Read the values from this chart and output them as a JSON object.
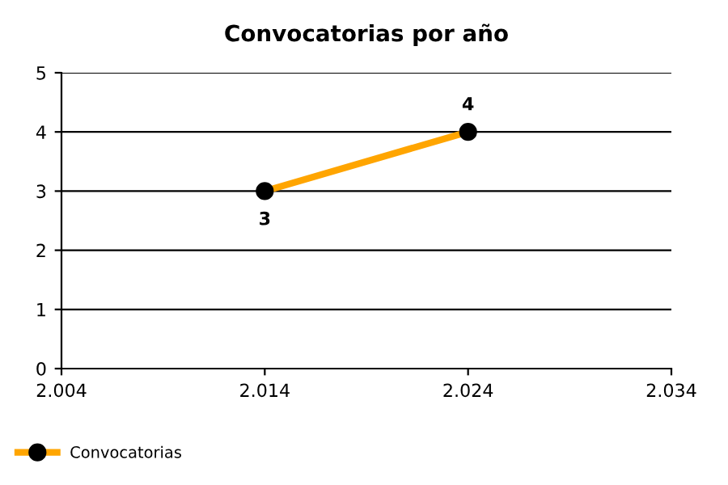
{
  "chart_data": {
    "type": "line",
    "title": "Convocatorias por año",
    "x": [
      2014,
      2024
    ],
    "series": [
      {
        "name": "Convocatorias",
        "color": "#ffa500",
        "values": [
          3,
          4
        ]
      }
    ],
    "xlim": [
      2004,
      2034
    ],
    "xticks": [
      {
        "value": 2004,
        "label": "2.004"
      },
      {
        "value": 2014,
        "label": "2.014"
      },
      {
        "value": 2024,
        "label": "2.024"
      },
      {
        "value": 2034,
        "label": "2.034"
      }
    ],
    "ylim": [
      0,
      5
    ],
    "yticks": [
      0,
      1,
      2,
      3,
      4,
      5
    ],
    "grid": "y",
    "legend": "bottom left",
    "marker": "circle",
    "line_style": "solid",
    "data_labels": true
  }
}
